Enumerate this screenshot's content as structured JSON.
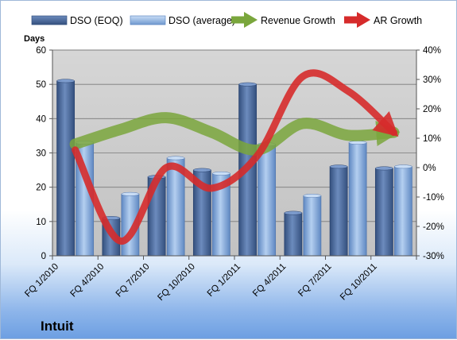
{
  "chart_data": {
    "type": "bar",
    "title": "",
    "company": "Intuit",
    "y_left_label": "Days",
    "y_left_lim": [
      0,
      60
    ],
    "y_left_ticks": [
      "0",
      "10",
      "20",
      "30",
      "40",
      "50",
      "60"
    ],
    "y_right_lim": [
      -30,
      40
    ],
    "y_right_ticks": [
      "-30%",
      "-20%",
      "-10%",
      "0%",
      "10%",
      "20%",
      "30%",
      "40%"
    ],
    "grid": true,
    "legend_position": "top",
    "categories": [
      "FQ 1/2010",
      "FQ 4/2010",
      "FQ 7/2010",
      "FQ 10/2010",
      "FQ 1/2011",
      "FQ 4/2011",
      "FQ 7/2011",
      "FQ 10/2011"
    ],
    "series": [
      {
        "name": "DSO (EOQ)",
        "type": "bar",
        "axis": "left",
        "color": "#4f6f9f",
        "values": [
          51,
          11,
          23,
          25,
          50,
          12.5,
          26,
          25.5
        ]
      },
      {
        "name": "DSO (average)",
        "type": "bar",
        "axis": "left",
        "color": "#8fb3e0",
        "values": [
          33,
          18,
          28.5,
          24,
          32.5,
          17.5,
          33,
          26
        ]
      },
      {
        "name": "Revenue Growth",
        "type": "line-arrow",
        "axis": "right",
        "color": "#7aa63c",
        "values": [
          8,
          13,
          17,
          12,
          6,
          15,
          11,
          12
        ]
      },
      {
        "name": "AR Growth",
        "type": "line-arrow",
        "axis": "right",
        "color": "#d62b2b",
        "values": [
          6,
          -25,
          0,
          -7,
          4,
          31,
          26,
          12
        ]
      }
    ]
  }
}
